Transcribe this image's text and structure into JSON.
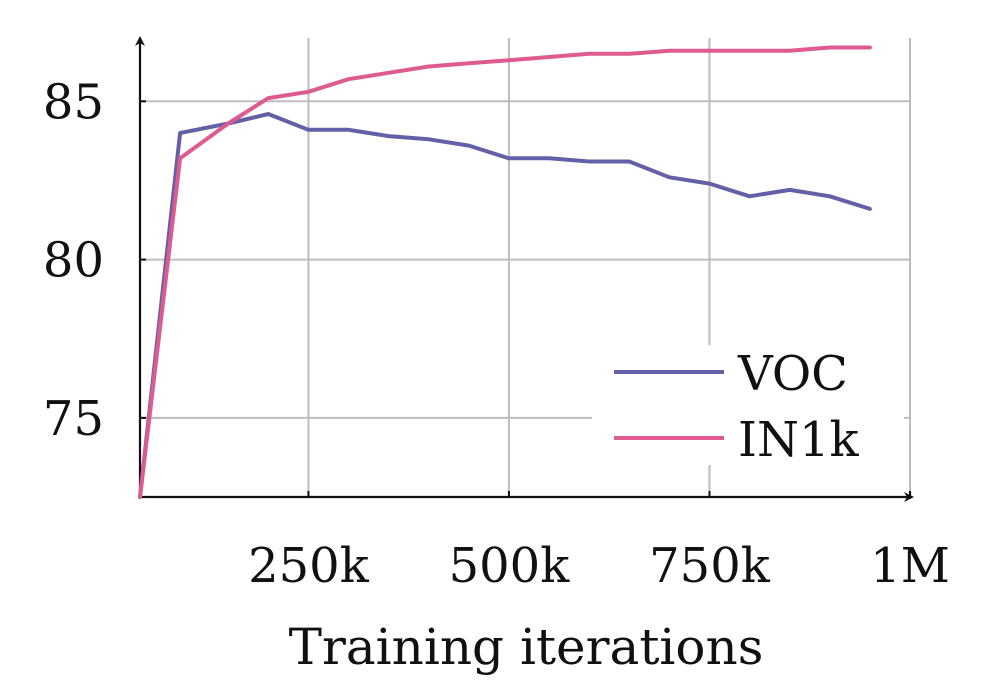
{
  "chart_data": {
    "type": "line",
    "title": "",
    "xlabel": "Training iterations",
    "ylabel": "",
    "xlim": [
      40000,
      1000000
    ],
    "ylim": [
      72.5,
      87
    ],
    "grid": true,
    "legend_position": "bottom-right",
    "x_ticks": [
      250000,
      500000,
      750000,
      1000000
    ],
    "x_tick_labels": [
      "250k",
      "500k",
      "750k",
      "1M"
    ],
    "y_ticks": [
      75,
      80,
      85
    ],
    "y_tick_labels": [
      "75",
      "80",
      "85"
    ],
    "series": [
      {
        "name": "VOC",
        "color": "#6460a8",
        "x": [
          40000,
          90000,
          150000,
          200000,
          250000,
          300000,
          350000,
          400000,
          450000,
          500000,
          550000,
          600000,
          650000,
          700000,
          750000,
          800000,
          850000,
          900000,
          950000
        ],
        "y": [
          72.5,
          84.0,
          84.3,
          84.6,
          84.1,
          84.1,
          83.9,
          83.8,
          83.6,
          83.2,
          83.2,
          83.1,
          83.1,
          82.6,
          82.4,
          82.0,
          82.2,
          82.0,
          81.6
        ]
      },
      {
        "name": "IN1k",
        "color": "#de5b8f",
        "x": [
          40000,
          90000,
          150000,
          200000,
          250000,
          300000,
          350000,
          400000,
          450000,
          500000,
          550000,
          600000,
          650000,
          700000,
          750000,
          800000,
          850000,
          900000,
          950000
        ],
        "y": [
          72.5,
          83.2,
          84.3,
          85.1,
          85.3,
          85.7,
          85.9,
          86.1,
          86.2,
          86.3,
          86.4,
          86.5,
          86.5,
          86.6,
          86.6,
          86.6,
          86.6,
          86.7,
          86.7
        ]
      }
    ]
  }
}
